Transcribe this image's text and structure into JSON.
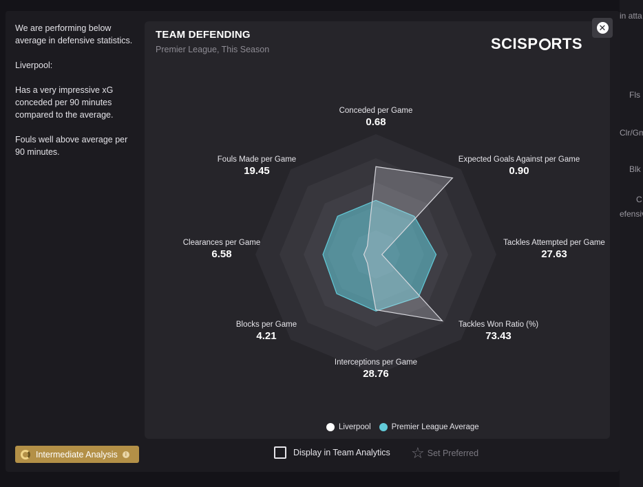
{
  "background": {
    "right_texts": [
      "in atta",
      "Fls",
      "Clr/Gm",
      "Blk",
      "C",
      "efensiv"
    ]
  },
  "summary": {
    "paragraphs": [
      "We are performing below average in defensive statistics.",
      "Liverpool:",
      "Has a very impressive xG conceded per 90 minutes compared to the average.",
      "Fouls well above average per 90 minutes."
    ]
  },
  "card": {
    "title": "TEAM DEFENDING",
    "subtitle": "Premier League, This Season",
    "logo_prefix": "SCISP",
    "logo_suffix": "RTS"
  },
  "chart_data": {
    "type": "radar",
    "axes": [
      {
        "name": "Conceded per Game",
        "value": "0.68"
      },
      {
        "name": "Expected Goals Against per Game",
        "value": "0.90"
      },
      {
        "name": "Tackles Attempted per Game",
        "value": "27.63"
      },
      {
        "name": "Tackles Won Ratio (%)",
        "value": "73.43"
      },
      {
        "name": "Interceptions per Game",
        "value": "28.76"
      },
      {
        "name": "Blocks per Game",
        "value": "4.21"
      },
      {
        "name": "Clearances per Game",
        "value": "6.58"
      },
      {
        "name": "Fouls Made per Game",
        "value": "19.45"
      }
    ],
    "rings": 5,
    "series": [
      {
        "name": "Liverpool",
        "color": "#e8e8ec",
        "values": [
          0.73,
          0.9,
          0.05,
          0.78,
          0.46,
          0.1,
          0.1,
          0.1
        ]
      },
      {
        "name": "Premier League Average",
        "color": "#62cbd9",
        "values": [
          0.45,
          0.45,
          0.5,
          0.5,
          0.47,
          0.46,
          0.44,
          0.45
        ]
      }
    ]
  },
  "legend": {
    "items": [
      {
        "label": "Liverpool",
        "color": "#ffffff"
      },
      {
        "label": "Premier League Average",
        "color": "#62cbd9"
      }
    ]
  },
  "footer": {
    "level_label": "Intermediate Analysis",
    "display_label": "Display in Team Analytics",
    "preferred_label": "Set Preferred"
  },
  "colors": {
    "accent_gold": "#b39047",
    "teal": "#62cbd9"
  }
}
